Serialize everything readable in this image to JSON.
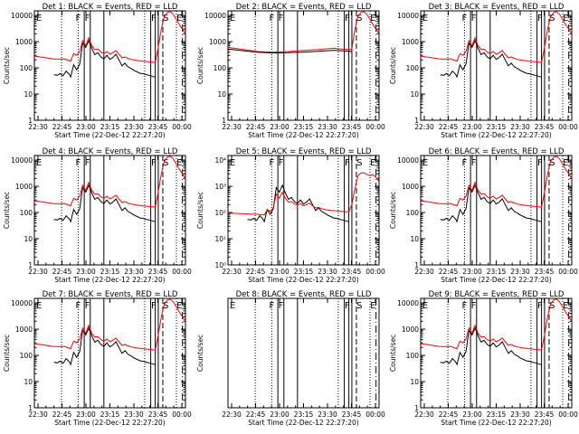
{
  "figure": {
    "background": "#ffffff",
    "black_color": "#000000",
    "red_color": "#ff0000"
  },
  "chart_data": [
    {
      "type": "line",
      "title": "Det  1: BLACK = Events, RED = LLD",
      "xlabel": "Start Time (22-Dec-12 22:27:20)",
      "ylabel": "Counts/sec",
      "tick_style": "plain",
      "y_tick_labels": [
        "1",
        "10",
        "100",
        "1000",
        "10000"
      ],
      "x_tick_labels": [
        "22:30",
        "22:45",
        "23:00",
        "23:15",
        "23:30",
        "23:45",
        "00:00"
      ],
      "ylim": [
        1,
        15000
      ],
      "xlim": [
        0,
        100
      ],
      "marks": [
        "E",
        "F",
        "F",
        "F",
        "S",
        "E"
      ],
      "detector": 1,
      "black": "normal",
      "red": "normal"
    },
    {
      "type": "line",
      "title": "Det  2: BLACK = Events, RED = LLD",
      "xlabel": "Start Time (22-Dec-12 22:27:20)",
      "ylabel": "Counts/sec",
      "tick_style": "plain",
      "y_tick_labels": [
        "1",
        "10",
        "100",
        "1000",
        "10000"
      ],
      "x_tick_labels": [
        "22:30",
        "22:45",
        "23:00",
        "23:15",
        "23:30",
        "23:45",
        "00:00"
      ],
      "ylim": [
        1,
        15000
      ],
      "xlim": [
        0,
        100
      ],
      "marks": [
        "E",
        "F",
        "F",
        "F",
        "S",
        "E"
      ],
      "detector": 2,
      "black": "flat",
      "red": "flat"
    },
    {
      "type": "line",
      "title": "Det  3: BLACK = Events, RED = LLD",
      "xlabel": "Start Time (22-Dec-12 22:27:20)",
      "ylabel": "Counts/sec",
      "tick_style": "plain",
      "y_tick_labels": [
        "1",
        "10",
        "100",
        "1000",
        "10000"
      ],
      "x_tick_labels": [
        "22:30",
        "22:45",
        "23:00",
        "23:15",
        "23:30",
        "23:45",
        "00:00"
      ],
      "ylim": [
        1,
        15000
      ],
      "xlim": [
        0,
        100
      ],
      "marks": [
        "E",
        "F",
        "F",
        "F",
        "S",
        "E"
      ],
      "detector": 3,
      "black": "normal",
      "red": "normal"
    },
    {
      "type": "line",
      "title": "Det  4: BLACK = Events, RED = LLD",
      "xlabel": "Start Time (22-Dec-12 22:27:20)",
      "ylabel": "Counts/sec",
      "tick_style": "plain",
      "y_tick_labels": [
        "1",
        "10",
        "100",
        "1000",
        "10000"
      ],
      "x_tick_labels": [
        "22:30",
        "22:45",
        "23:00",
        "23:15",
        "23:30",
        "23:45",
        "00:00"
      ],
      "ylim": [
        1,
        15000
      ],
      "xlim": [
        0,
        100
      ],
      "marks": [
        "E",
        "F",
        "F",
        "F",
        "S",
        "E"
      ],
      "detector": 4,
      "black": "normal",
      "red": "normal"
    },
    {
      "type": "line",
      "title": "Det  5: BLACK = Events, RED = LLD",
      "xlabel": "Start Time (22-Dec-12 22:27:20)",
      "ylabel": "Counts/sec",
      "tick_style": "power",
      "y_tick_labels": [
        "0",
        "1",
        "2",
        "3",
        "4"
      ],
      "x_tick_labels": [
        "22:30",
        "22:45",
        "23:00",
        "23:15",
        "23:30",
        "23:45",
        "00:00"
      ],
      "ylim": [
        1,
        15000
      ],
      "xlim": [
        0,
        100
      ],
      "marks": [
        "E",
        "F",
        "F",
        "F",
        "S",
        "E"
      ],
      "detector": 5,
      "black": "normal",
      "red": "det5"
    },
    {
      "type": "line",
      "title": "Det  6: BLACK = Events, RED = LLD",
      "xlabel": "Start Time (22-Dec-12 22:27:20)",
      "ylabel": "Counts/sec",
      "tick_style": "plain",
      "y_tick_labels": [
        "1",
        "10",
        "100",
        "1000",
        "10000"
      ],
      "x_tick_labels": [
        "22:30",
        "22:45",
        "23:00",
        "23:15",
        "23:30",
        "23:45",
        "00:00"
      ],
      "ylim": [
        1,
        15000
      ],
      "xlim": [
        0,
        100
      ],
      "marks": [
        "E",
        "F",
        "F",
        "F",
        "S",
        "E"
      ],
      "detector": 6,
      "black": "normal",
      "red": "normal"
    },
    {
      "type": "line",
      "title": "Det  7: BLACK = Events, RED = LLD",
      "xlabel": "Start Time (22-Dec-12 22:27:20)",
      "ylabel": "Counts/sec",
      "tick_style": "plain",
      "y_tick_labels": [
        "1",
        "10",
        "100",
        "1000",
        "10000"
      ],
      "x_tick_labels": [
        "22:30",
        "22:45",
        "23:00",
        "23:15",
        "23:30",
        "23:45",
        "00:00"
      ],
      "ylim": [
        1,
        15000
      ],
      "xlim": [
        0,
        100
      ],
      "marks": [
        "E",
        "F",
        "F",
        "F",
        "S",
        "E"
      ],
      "detector": 7,
      "black": "normal",
      "red": "normal"
    },
    {
      "type": "line",
      "title": "Det  8: BLACK = Events, RED = LLD",
      "xlabel": "Start Time (22-Dec-12 22:27:20)",
      "ylabel": "Counts/sec",
      "tick_style": "none",
      "y_tick_labels": [],
      "x_tick_labels": [
        "22:30",
        "22:45",
        "23:00",
        "23:15",
        "23:30",
        "23:45",
        "00:00"
      ],
      "ylim": [
        1,
        15000
      ],
      "xlim": [
        0,
        100
      ],
      "marks": [
        "E",
        "F",
        "F",
        "F",
        "S",
        "E"
      ],
      "detector": 8,
      "black": "none",
      "red": "none"
    },
    {
      "type": "line",
      "title": "Det  9: BLACK = Events, RED = LLD",
      "xlabel": "Start Time (22-Dec-12 22:27:20)",
      "ylabel": "Counts/sec",
      "tick_style": "plain",
      "y_tick_labels": [
        "1",
        "10",
        "100",
        "1000",
        "10000"
      ],
      "x_tick_labels": [
        "22:30",
        "22:45",
        "23:00",
        "23:15",
        "23:30",
        "23:45",
        "00:00"
      ],
      "ylim": [
        1,
        15000
      ],
      "xlim": [
        0,
        100
      ],
      "marks": [
        "E",
        "F",
        "F",
        "F",
        "S",
        "E"
      ],
      "detector": 9,
      "black": "normal",
      "red": "normal"
    }
  ],
  "curves": {
    "normal_black": [
      [
        13,
        55
      ],
      [
        15,
        52
      ],
      [
        17,
        60
      ],
      [
        19,
        50
      ],
      [
        21,
        75
      ],
      [
        23,
        58
      ],
      [
        24,
        45
      ],
      [
        26,
        130
      ],
      [
        28,
        85
      ],
      [
        30,
        140
      ],
      [
        32,
        900
      ],
      [
        34,
        600
      ],
      [
        36,
        1100
      ],
      [
        38,
        550
      ],
      [
        40,
        320
      ],
      [
        42,
        380
      ],
      [
        44,
        260
      ],
      [
        46,
        220
      ],
      [
        48,
        300
      ],
      [
        50,
        210
      ],
      [
        52,
        250
      ],
      [
        54,
        330
      ],
      [
        56,
        200
      ],
      [
        58,
        120
      ],
      [
        60,
        150
      ],
      [
        62,
        110
      ],
      [
        64,
        95
      ],
      [
        66,
        80
      ],
      [
        68,
        70
      ],
      [
        70,
        62
      ],
      [
        72,
        60
      ],
      [
        74,
        55
      ],
      [
        76,
        52
      ],
      [
        78,
        48
      ],
      [
        79,
        46
      ],
      [
        80,
        44
      ]
    ],
    "normal_red": [
      [
        0,
        280
      ],
      [
        4,
        260
      ],
      [
        8,
        240
      ],
      [
        12,
        220
      ],
      [
        16,
        215
      ],
      [
        20,
        220
      ],
      [
        24,
        180
      ],
      [
        26,
        350
      ],
      [
        28,
        300
      ],
      [
        30,
        420
      ],
      [
        32,
        1100
      ],
      [
        34,
        700
      ],
      [
        36,
        1400
      ],
      [
        38,
        700
      ],
      [
        40,
        500
      ],
      [
        42,
        520
      ],
      [
        44,
        400
      ],
      [
        46,
        350
      ],
      [
        48,
        420
      ],
      [
        50,
        330
      ],
      [
        52,
        380
      ],
      [
        54,
        460
      ],
      [
        56,
        330
      ],
      [
        58,
        240
      ],
      [
        60,
        260
      ],
      [
        62,
        230
      ],
      [
        64,
        210
      ],
      [
        66,
        200
      ],
      [
        68,
        190
      ],
      [
        70,
        185
      ],
      [
        72,
        180
      ],
      [
        74,
        175
      ],
      [
        76,
        170
      ],
      [
        78,
        165
      ],
      [
        80,
        160
      ],
      [
        82,
        600
      ],
      [
        84,
        3000
      ],
      [
        86,
        9000
      ],
      [
        88,
        13000
      ],
      [
        90,
        14000
      ],
      [
        92,
        11000
      ],
      [
        94,
        7000
      ],
      [
        96,
        4500
      ],
      [
        98,
        3000
      ],
      [
        100,
        2000
      ]
    ],
    "flat_black": [
      [
        0,
        520
      ],
      [
        10,
        450
      ],
      [
        20,
        390
      ],
      [
        30,
        370
      ],
      [
        40,
        380
      ],
      [
        50,
        400
      ],
      [
        60,
        430
      ],
      [
        70,
        470
      ],
      [
        75,
        450
      ],
      [
        80,
        430
      ],
      [
        82,
        420
      ]
    ],
    "flat_red": [
      [
        0,
        600
      ],
      [
        10,
        500
      ],
      [
        20,
        420
      ],
      [
        30,
        400
      ],
      [
        40,
        420
      ],
      [
        50,
        460
      ],
      [
        60,
        500
      ],
      [
        70,
        560
      ],
      [
        75,
        520
      ],
      [
        80,
        500
      ],
      [
        82,
        520
      ],
      [
        84,
        3000
      ],
      [
        86,
        9000
      ],
      [
        88,
        13000
      ],
      [
        90,
        14000
      ],
      [
        92,
        11000
      ],
      [
        94,
        7000
      ],
      [
        96,
        4500
      ],
      [
        98,
        3000
      ],
      [
        100,
        2000
      ]
    ],
    "det5_red": [
      [
        0,
        95
      ],
      [
        10,
        90
      ],
      [
        20,
        85
      ],
      [
        24,
        80
      ],
      [
        26,
        130
      ],
      [
        28,
        110
      ],
      [
        30,
        150
      ],
      [
        32,
        500
      ],
      [
        34,
        350
      ],
      [
        36,
        600
      ],
      [
        38,
        350
      ],
      [
        40,
        250
      ],
      [
        42,
        260
      ],
      [
        44,
        210
      ],
      [
        46,
        190
      ],
      [
        48,
        220
      ],
      [
        50,
        180
      ],
      [
        52,
        200
      ],
      [
        54,
        230
      ],
      [
        56,
        180
      ],
      [
        58,
        150
      ],
      [
        60,
        155
      ],
      [
        62,
        140
      ],
      [
        64,
        130
      ],
      [
        66,
        125
      ],
      [
        68,
        120
      ],
      [
        70,
        118
      ],
      [
        72,
        115
      ],
      [
        74,
        112
      ],
      [
        76,
        110
      ],
      [
        78,
        108
      ],
      [
        80,
        105
      ],
      [
        82,
        200
      ],
      [
        84,
        800
      ],
      [
        86,
        2500
      ],
      [
        88,
        3200
      ],
      [
        90,
        3300
      ],
      [
        92,
        2800
      ],
      [
        94,
        2600
      ],
      [
        96,
        2800
      ],
      [
        98,
        2200
      ],
      [
        100,
        1500
      ]
    ]
  }
}
